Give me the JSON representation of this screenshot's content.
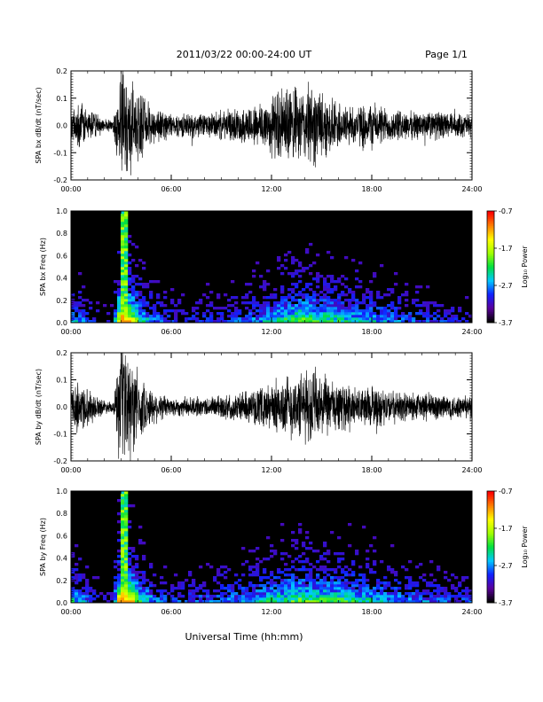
{
  "header": {
    "date_range": "2011/03/22  00:00-24:00 UT",
    "page": "Page 1/1"
  },
  "x_axis": {
    "label": "Universal Time (hh:mm)",
    "ticks": [
      "00:00",
      "06:00",
      "12:00",
      "18:00",
      "24:00"
    ],
    "range_hours": [
      0,
      24
    ]
  },
  "colorbar": {
    "label": "Log₁₀ Power",
    "ticks": [
      "-0.7",
      "-1.7",
      "-2.7",
      "-3.7"
    ],
    "range": [
      -3.7,
      -0.7
    ],
    "colors": [
      "#000000",
      "#5a009c",
      "#1020ff",
      "#00c8ff",
      "#00e040",
      "#a0ff00",
      "#ffff00",
      "#ff8000",
      "#ff0000"
    ]
  },
  "chart_data": [
    {
      "type": "line",
      "ylabel": "SPA bx dB/dt (nT/sec)",
      "ylim": [
        -0.2,
        0.2
      ],
      "yticks": [
        "-0.2",
        "-0.1",
        "0.0",
        "0.1",
        "0.2"
      ],
      "xlim": [
        0,
        24
      ],
      "series_color": "#000000",
      "amplitude_envelope": {
        "hours": [
          0,
          0.5,
          1,
          1.5,
          2,
          2.5,
          3,
          3.5,
          4,
          4.5,
          5,
          6,
          7,
          8,
          9,
          10,
          11,
          12,
          12.5,
          13,
          13.5,
          14,
          14.5,
          15,
          16,
          17,
          18,
          19,
          20,
          21,
          22,
          23,
          24
        ],
        "values": [
          0.06,
          0.1,
          0.07,
          0.05,
          0.03,
          0.02,
          0.25,
          0.2,
          0.15,
          0.1,
          0.08,
          0.05,
          0.05,
          0.05,
          0.06,
          0.07,
          0.09,
          0.13,
          0.15,
          0.17,
          0.15,
          0.16,
          0.18,
          0.14,
          0.1,
          0.08,
          0.1,
          0.07,
          0.06,
          0.06,
          0.06,
          0.05,
          0.05
        ]
      }
    },
    {
      "type": "heatmap",
      "ylabel": "SPA bx Freq (Hz)",
      "ylim": [
        0,
        1
      ],
      "yticks": [
        "0.0",
        "0.2",
        "0.4",
        "0.6",
        "0.8",
        "1.0"
      ],
      "xlim": [
        0,
        24
      ],
      "zlim": [
        -3.7,
        -0.7
      ],
      "activity_profile": {
        "hours": [
          0,
          0.5,
          1,
          2,
          2.5,
          3,
          3.5,
          4,
          4.5,
          5,
          6,
          8,
          10,
          11,
          12,
          13,
          14,
          15,
          16,
          17,
          18,
          20,
          22,
          24
        ],
        "values": [
          0.35,
          0.3,
          0.2,
          0.1,
          0.1,
          1.0,
          0.8,
          0.5,
          0.4,
          0.3,
          0.2,
          0.2,
          0.25,
          0.3,
          0.4,
          0.5,
          0.55,
          0.5,
          0.45,
          0.4,
          0.35,
          0.25,
          0.2,
          0.15
        ]
      }
    },
    {
      "type": "line",
      "ylabel": "SPA by dB/dt (nT/sec)",
      "ylim": [
        -0.2,
        0.2
      ],
      "yticks": [
        "-0.2",
        "-0.1",
        "0.0",
        "0.1",
        "0.2"
      ],
      "xlim": [
        0,
        24
      ],
      "series_color": "#000000",
      "amplitude_envelope": {
        "hours": [
          0,
          0.5,
          1,
          1.5,
          2,
          2.5,
          3,
          3.5,
          4,
          4.5,
          5,
          6,
          7,
          8,
          9,
          10,
          11,
          12,
          12.5,
          13,
          13.5,
          14,
          14.5,
          15,
          16,
          17,
          18,
          19,
          20,
          21,
          22,
          23,
          24
        ],
        "values": [
          0.07,
          0.12,
          0.08,
          0.05,
          0.03,
          0.02,
          0.25,
          0.22,
          0.15,
          0.09,
          0.07,
          0.04,
          0.04,
          0.04,
          0.05,
          0.06,
          0.07,
          0.1,
          0.12,
          0.14,
          0.13,
          0.15,
          0.17,
          0.13,
          0.1,
          0.08,
          0.09,
          0.07,
          0.06,
          0.06,
          0.06,
          0.05,
          0.05
        ]
      }
    },
    {
      "type": "heatmap",
      "ylabel": "SPA by Freq (Hz)",
      "ylim": [
        0,
        1
      ],
      "yticks": [
        "0.0",
        "0.2",
        "0.4",
        "0.6",
        "0.8",
        "1.0"
      ],
      "xlim": [
        0,
        24
      ],
      "zlim": [
        -3.7,
        -0.7
      ],
      "activity_profile": {
        "hours": [
          0,
          0.5,
          1,
          2,
          2.5,
          3,
          3.5,
          4,
          4.5,
          5,
          6,
          8,
          10,
          11,
          12,
          13,
          14,
          15,
          16,
          17,
          18,
          20,
          22,
          24
        ],
        "values": [
          0.4,
          0.35,
          0.25,
          0.12,
          0.1,
          1.0,
          0.85,
          0.55,
          0.4,
          0.3,
          0.2,
          0.25,
          0.3,
          0.35,
          0.45,
          0.5,
          0.55,
          0.5,
          0.5,
          0.45,
          0.4,
          0.3,
          0.25,
          0.2
        ]
      }
    }
  ]
}
